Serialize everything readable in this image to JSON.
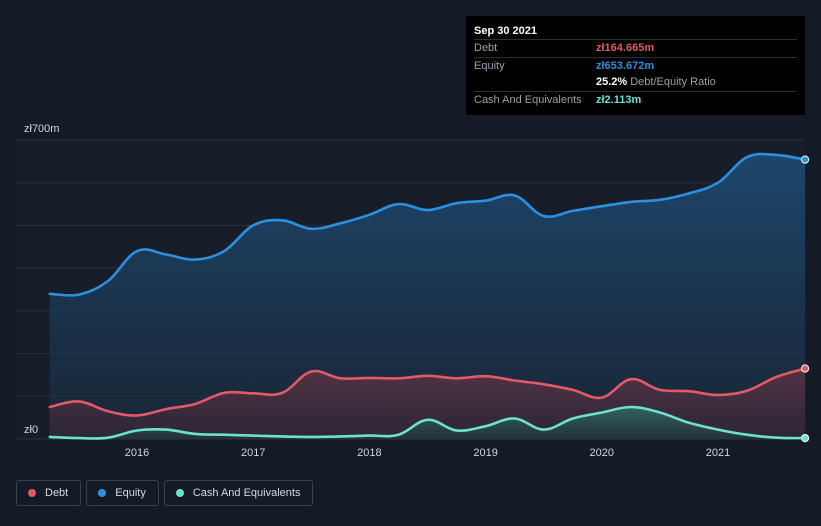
{
  "tooltip": {
    "date": "Sep 30 2021",
    "debt_label": "Debt",
    "debt_value": "zł164.665m",
    "equity_label": "Equity",
    "equity_value": "zł653.672m",
    "ratio_value": "25.2%",
    "ratio_label": "Debt/Equity Ratio",
    "cash_label": "Cash And Equivalents",
    "cash_value": "zł2.113m"
  },
  "legend": [
    {
      "label": "Debt",
      "color": "#e05a68"
    },
    {
      "label": "Equity",
      "color": "#2d8fe0"
    },
    {
      "label": "Cash And Equivalents",
      "color": "#6ee0cf"
    }
  ],
  "chart_data": {
    "type": "area",
    "title": "",
    "xlabel": "",
    "ylabel": "",
    "ylim": [
      0,
      700
    ],
    "y_tick_labels": [
      {
        "value": 700,
        "label": "zł700m"
      },
      {
        "value": 0,
        "label": "zł0"
      }
    ],
    "x_tick_labels": [
      "2016",
      "2017",
      "2018",
      "2019",
      "2020",
      "2021"
    ],
    "xlim": [
      2015.25,
      2021.75
    ],
    "grid": true,
    "colors": {
      "debt": "#e05a68",
      "equity": "#2d8fe0",
      "cash": "#6ee0cf"
    },
    "series": [
      {
        "name": "Equity",
        "key": "equity",
        "x": [
          2015.25,
          2015.5,
          2015.75,
          2016.0,
          2016.25,
          2016.5,
          2016.75,
          2017.0,
          2017.25,
          2017.5,
          2017.75,
          2018.0,
          2018.25,
          2018.5,
          2018.75,
          2019.0,
          2019.25,
          2019.5,
          2019.75,
          2020.0,
          2020.25,
          2020.5,
          2020.75,
          2021.0,
          2021.25,
          2021.5,
          2021.75
        ],
        "values": [
          340,
          338,
          370,
          440,
          432,
          420,
          440,
          500,
          512,
          492,
          505,
          525,
          550,
          536,
          552,
          558,
          570,
          522,
          534,
          545,
          555,
          560,
          575,
          600,
          660,
          665,
          654
        ]
      },
      {
        "name": "Debt",
        "key": "debt",
        "x": [
          2015.25,
          2015.5,
          2015.75,
          2016.0,
          2016.25,
          2016.5,
          2016.75,
          2017.0,
          2017.25,
          2017.5,
          2017.75,
          2018.0,
          2018.25,
          2018.5,
          2018.75,
          2019.0,
          2019.25,
          2019.5,
          2019.75,
          2020.0,
          2020.25,
          2020.5,
          2020.75,
          2021.0,
          2021.25,
          2021.5,
          2021.75
        ],
        "values": [
          75,
          88,
          65,
          55,
          70,
          82,
          108,
          107,
          108,
          158,
          142,
          143,
          142,
          148,
          142,
          147,
          137,
          128,
          115,
          97,
          140,
          115,
          112,
          103,
          113,
          145,
          165
        ]
      },
      {
        "name": "Cash And Equivalents",
        "key": "cash",
        "x": [
          2015.25,
          2015.5,
          2015.75,
          2016.0,
          2016.25,
          2016.5,
          2016.75,
          2017.0,
          2017.25,
          2017.5,
          2017.75,
          2018.0,
          2018.25,
          2018.5,
          2018.75,
          2019.0,
          2019.25,
          2019.5,
          2019.75,
          2020.0,
          2020.25,
          2020.5,
          2020.75,
          2021.0,
          2021.25,
          2021.5,
          2021.75
        ],
        "values": [
          5,
          2,
          3,
          20,
          22,
          12,
          10,
          8,
          6,
          5,
          6,
          8,
          10,
          45,
          20,
          30,
          48,
          22,
          48,
          62,
          75,
          62,
          38,
          22,
          10,
          3,
          2
        ]
      }
    ]
  }
}
